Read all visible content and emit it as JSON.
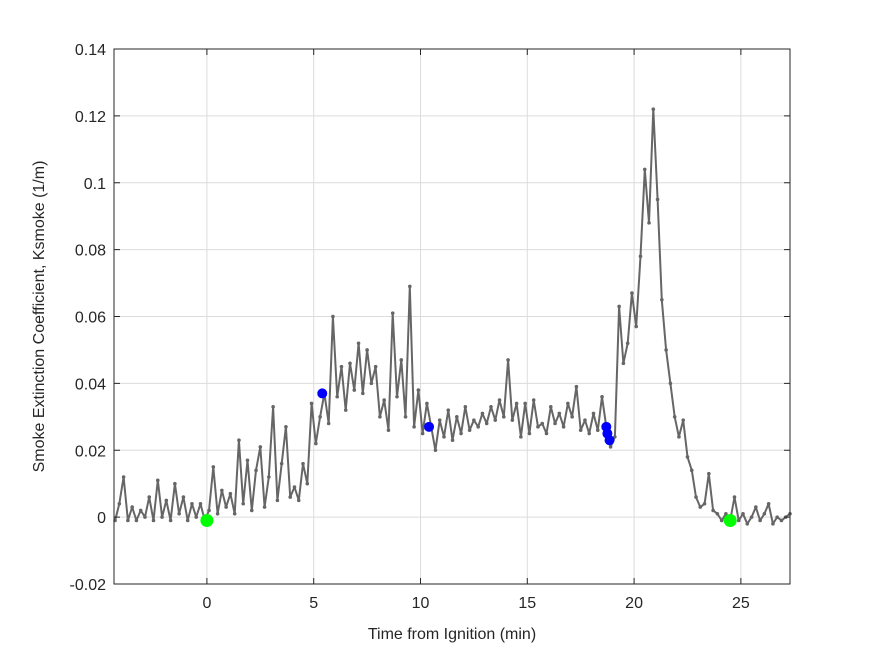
{
  "chart_data": {
    "type": "line",
    "title": "",
    "xlabel": "Time from Ignition (min)",
    "ylabel": "Smoke Extinction Coefficient, Ksmoke (1/m)",
    "xlim": [
      -4.35,
      27.3
    ],
    "ylim": [
      -0.02,
      0.14
    ],
    "xticks": [
      0,
      5,
      10,
      15,
      20,
      25
    ],
    "yticks": [
      -0.02,
      0,
      0.02,
      0.04,
      0.06,
      0.08,
      0.1,
      0.12,
      0.14
    ],
    "ytick_labels": [
      "-0.02",
      "0",
      "0.02",
      "0.04",
      "0.06",
      "0.08",
      "0.1",
      "0.12",
      "0.14"
    ],
    "grid": true,
    "colors": {
      "series": "#666666",
      "blue_markers": "#0000ff",
      "green_markers": "#00ff00",
      "grid": "#dcdcdc",
      "axis": "#262626"
    },
    "series": [
      {
        "points": [
          [
            -4.3,
            -0.001
          ],
          [
            -4.1,
            0.004
          ],
          [
            -3.9,
            0.012
          ],
          [
            -3.7,
            -0.001
          ],
          [
            -3.5,
            0.003
          ],
          [
            -3.3,
            -0.001
          ],
          [
            -3.1,
            0.002
          ],
          [
            -2.9,
            0.0
          ],
          [
            -2.7,
            0.006
          ],
          [
            -2.5,
            -0.001
          ],
          [
            -2.3,
            0.011
          ],
          [
            -2.1,
            0.0
          ],
          [
            -1.9,
            0.005
          ],
          [
            -1.7,
            -0.001
          ],
          [
            -1.5,
            0.01
          ],
          [
            -1.3,
            0.001
          ],
          [
            -1.1,
            0.006
          ],
          [
            -0.9,
            -0.001
          ],
          [
            -0.7,
            0.004
          ],
          [
            -0.5,
            0.0
          ],
          [
            -0.3,
            0.004
          ],
          [
            -0.1,
            -0.001
          ],
          [
            0.1,
            0.002
          ],
          [
            0.3,
            0.015
          ],
          [
            0.5,
            0.001
          ],
          [
            0.7,
            0.008
          ],
          [
            0.9,
            0.003
          ],
          [
            1.1,
            0.007
          ],
          [
            1.3,
            0.001
          ],
          [
            1.5,
            0.023
          ],
          [
            1.7,
            0.004
          ],
          [
            1.9,
            0.017
          ],
          [
            2.1,
            0.002
          ],
          [
            2.3,
            0.014
          ],
          [
            2.5,
            0.021
          ],
          [
            2.7,
            0.003
          ],
          [
            2.9,
            0.012
          ],
          [
            3.1,
            0.033
          ],
          [
            3.3,
            0.005
          ],
          [
            3.5,
            0.016
          ],
          [
            3.7,
            0.027
          ],
          [
            3.9,
            0.006
          ],
          [
            4.1,
            0.009
          ],
          [
            4.3,
            0.005
          ],
          [
            4.5,
            0.016
          ],
          [
            4.7,
            0.01
          ],
          [
            4.9,
            0.034
          ],
          [
            5.1,
            0.022
          ],
          [
            5.3,
            0.03
          ],
          [
            5.5,
            0.037
          ],
          [
            5.7,
            0.028
          ],
          [
            5.9,
            0.06
          ],
          [
            6.1,
            0.036
          ],
          [
            6.3,
            0.045
          ],
          [
            6.5,
            0.032
          ],
          [
            6.7,
            0.046
          ],
          [
            6.9,
            0.038
          ],
          [
            7.1,
            0.052
          ],
          [
            7.3,
            0.037
          ],
          [
            7.5,
            0.05
          ],
          [
            7.7,
            0.04
          ],
          [
            7.9,
            0.045
          ],
          [
            8.1,
            0.03
          ],
          [
            8.3,
            0.035
          ],
          [
            8.5,
            0.026
          ],
          [
            8.7,
            0.061
          ],
          [
            8.9,
            0.036
          ],
          [
            9.1,
            0.047
          ],
          [
            9.3,
            0.03
          ],
          [
            9.5,
            0.069
          ],
          [
            9.7,
            0.027
          ],
          [
            9.9,
            0.038
          ],
          [
            10.1,
            0.025
          ],
          [
            10.3,
            0.034
          ],
          [
            10.5,
            0.027
          ],
          [
            10.7,
            0.02
          ],
          [
            10.9,
            0.029
          ],
          [
            11.1,
            0.024
          ],
          [
            11.3,
            0.032
          ],
          [
            11.5,
            0.023
          ],
          [
            11.7,
            0.03
          ],
          [
            11.9,
            0.025
          ],
          [
            12.1,
            0.033
          ],
          [
            12.3,
            0.026
          ],
          [
            12.5,
            0.029
          ],
          [
            12.7,
            0.027
          ],
          [
            12.9,
            0.031
          ],
          [
            13.1,
            0.028
          ],
          [
            13.3,
            0.033
          ],
          [
            13.5,
            0.029
          ],
          [
            13.7,
            0.035
          ],
          [
            13.9,
            0.03
          ],
          [
            14.1,
            0.047
          ],
          [
            14.3,
            0.029
          ],
          [
            14.5,
            0.034
          ],
          [
            14.7,
            0.024
          ],
          [
            14.9,
            0.034
          ],
          [
            15.1,
            0.025
          ],
          [
            15.3,
            0.035
          ],
          [
            15.5,
            0.027
          ],
          [
            15.7,
            0.028
          ],
          [
            15.9,
            0.025
          ],
          [
            16.1,
            0.033
          ],
          [
            16.3,
            0.028
          ],
          [
            16.5,
            0.031
          ],
          [
            16.7,
            0.027
          ],
          [
            16.9,
            0.034
          ],
          [
            17.1,
            0.03
          ],
          [
            17.3,
            0.039
          ],
          [
            17.5,
            0.026
          ],
          [
            17.7,
            0.029
          ],
          [
            17.9,
            0.025
          ],
          [
            18.1,
            0.031
          ],
          [
            18.3,
            0.026
          ],
          [
            18.5,
            0.036
          ],
          [
            18.7,
            0.027
          ],
          [
            18.9,
            0.021
          ],
          [
            19.1,
            0.024
          ],
          [
            19.3,
            0.063
          ],
          [
            19.5,
            0.046
          ],
          [
            19.7,
            0.052
          ],
          [
            19.9,
            0.067
          ],
          [
            20.1,
            0.057
          ],
          [
            20.3,
            0.078
          ],
          [
            20.5,
            0.104
          ],
          [
            20.7,
            0.088
          ],
          [
            20.9,
            0.122
          ],
          [
            21.1,
            0.095
          ],
          [
            21.3,
            0.065
          ],
          [
            21.5,
            0.05
          ],
          [
            21.7,
            0.04
          ],
          [
            21.9,
            0.03
          ],
          [
            22.1,
            0.024
          ],
          [
            22.3,
            0.029
          ],
          [
            22.5,
            0.018
          ],
          [
            22.7,
            0.014
          ],
          [
            22.9,
            0.006
          ],
          [
            23.1,
            0.003
          ],
          [
            23.3,
            0.004
          ],
          [
            23.5,
            0.013
          ],
          [
            23.7,
            0.002
          ],
          [
            23.9,
            0.001
          ],
          [
            24.1,
            -0.001
          ],
          [
            24.3,
            0.001
          ],
          [
            24.5,
            -0.001
          ],
          [
            24.7,
            0.006
          ],
          [
            24.9,
            -0.001
          ],
          [
            25.1,
            0.001
          ],
          [
            25.3,
            -0.002
          ],
          [
            25.5,
            0.0
          ],
          [
            25.7,
            0.003
          ],
          [
            25.9,
            -0.001
          ],
          [
            26.1,
            0.001
          ],
          [
            26.3,
            0.004
          ],
          [
            26.5,
            -0.002
          ],
          [
            26.7,
            0.0
          ],
          [
            26.9,
            -0.001
          ],
          [
            27.1,
            0.0
          ],
          [
            27.3,
            0.001
          ]
        ]
      }
    ],
    "blue_markers": [
      [
        5.4,
        0.037
      ],
      [
        10.4,
        0.027
      ],
      [
        18.7,
        0.027
      ],
      [
        18.75,
        0.025
      ],
      [
        18.85,
        0.023
      ]
    ],
    "green_markers": [
      [
        0,
        -0.001
      ],
      [
        24.5,
        -0.001
      ]
    ]
  }
}
